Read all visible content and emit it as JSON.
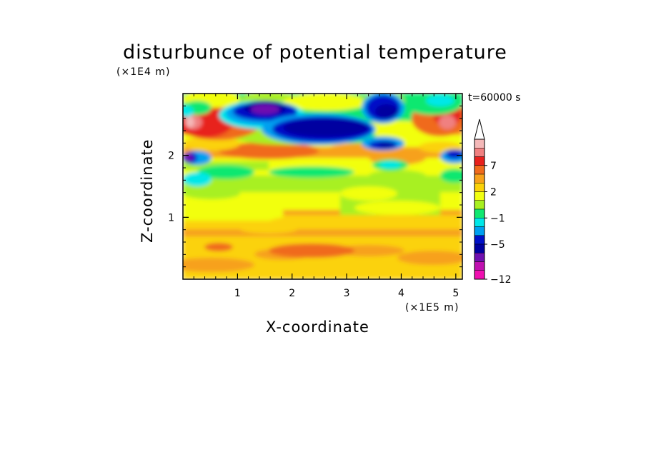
{
  "chart_data": {
    "type": "heatmap",
    "title": "disturbunce of potential temperature",
    "xlabel": "X-coordinate",
    "ylabel": "Z-coordinate",
    "x_unit": "(×1E5 m)",
    "y_unit": "(×1E4 m)",
    "time_label": "t=60000 s",
    "xlim": [
      0,
      5.12
    ],
    "ylim": [
      0,
      3.0
    ],
    "x_ticks": [
      "1",
      "2",
      "3",
      "4",
      "5"
    ],
    "y_ticks": [
      "1",
      "2"
    ],
    "x_tick_values": [
      1,
      2,
      3,
      4,
      5
    ],
    "y_tick_values": [
      1,
      2
    ],
    "colorbar": {
      "labels": [
        {
          "text": "7",
          "value": 7
        },
        {
          "text": "2",
          "value": 2
        },
        {
          "text": "−1",
          "value": -1
        },
        {
          "text": "−5",
          "value": -5
        },
        {
          "text": "−12",
          "value": -12
        }
      ],
      "levels": [
        {
          "value": 9,
          "color": "#f4b8b8"
        },
        {
          "value": 8,
          "color": "#f08080"
        },
        {
          "value": 7,
          "color": "#e8201c"
        },
        {
          "value": 5,
          "color": "#f06a1c"
        },
        {
          "value": 3,
          "color": "#f7a11a"
        },
        {
          "value": 2,
          "color": "#fbd208"
        },
        {
          "value": 1,
          "color": "#f2ff10"
        },
        {
          "value": 0,
          "color": "#a8f020"
        },
        {
          "value": -1,
          "color": "#10e870"
        },
        {
          "value": -2,
          "color": "#00e8e8"
        },
        {
          "value": -3,
          "color": "#00a0f0"
        },
        {
          "value": -5,
          "color": "#0010c8"
        },
        {
          "value": -7,
          "color": "#0000a0"
        },
        {
          "value": -9,
          "color": "#7010b0"
        },
        {
          "value": -11,
          "color": "#c010b0"
        },
        {
          "value": -12,
          "color": "#f010b0"
        }
      ]
    },
    "field_description_regions": [
      {
        "x": [
          0.0,
          5.12
        ],
        "z": [
          0.0,
          0.95
        ],
        "value": 2
      },
      {
        "x": [
          0.0,
          5.12
        ],
        "z": [
          0.95,
          1.2
        ],
        "value": 1
      },
      {
        "x": [
          0.0,
          5.12
        ],
        "z": [
          1.2,
          1.7
        ],
        "value": 0
      },
      {
        "x": [
          1.8,
          3.5
        ],
        "z": [
          2.3,
          2.55
        ],
        "value": -7
      },
      {
        "x": [
          0.0,
          0.4
        ],
        "z": [
          2.3,
          2.9
        ],
        "value": 5
      },
      {
        "x": [
          4.5,
          5.12
        ],
        "z": [
          2.3,
          2.9
        ],
        "value": 5
      }
    ]
  }
}
